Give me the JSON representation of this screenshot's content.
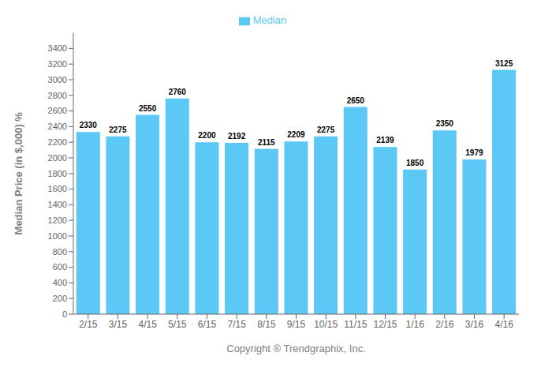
{
  "chart_data": {
    "type": "bar",
    "categories": [
      "2/15",
      "3/15",
      "4/15",
      "5/15",
      "6/15",
      "7/15",
      "8/15",
      "9/15",
      "10/15",
      "11/15",
      "12/15",
      "1/16",
      "2/16",
      "3/16",
      "4/16"
    ],
    "series": [
      {
        "name": "Median",
        "color": "#5BC8F5",
        "values": [
          2330,
          2275,
          2550,
          2760,
          2200,
          2192,
          2115,
          2209,
          2275,
          2650,
          2139,
          1850,
          2350,
          1979,
          3125
        ]
      }
    ],
    "ylabel": "Median Price (in $,000) %",
    "xlabel": "Copyright ® Trendgraphix, Inc.",
    "ylim": [
      0,
      3600
    ],
    "yticks": [
      0,
      200,
      400,
      600,
      800,
      1000,
      1200,
      1400,
      1600,
      1800,
      2000,
      2200,
      2400,
      2600,
      2800,
      3000,
      3200,
      3400
    ],
    "grid": false,
    "legend": "top",
    "data_labels": true
  }
}
